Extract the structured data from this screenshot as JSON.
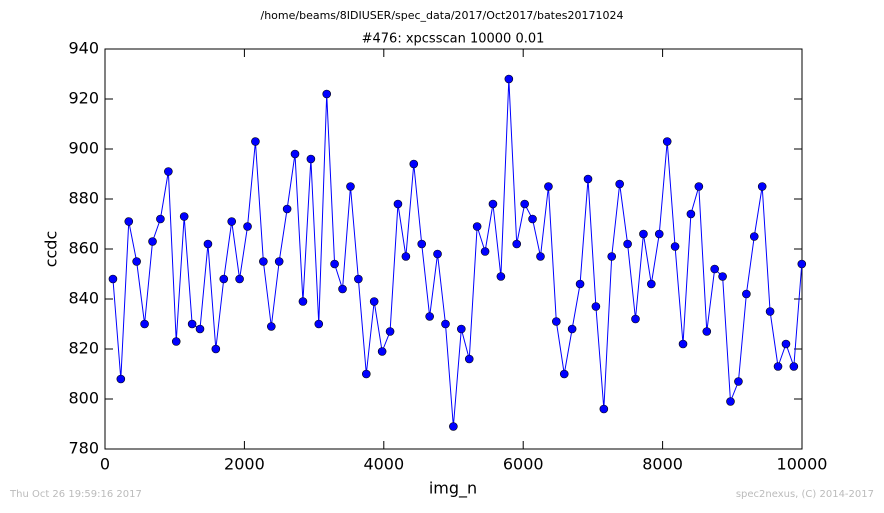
{
  "chart_data": {
    "type": "line",
    "suptitle": "/home/beams/8IDIUSER/spec_data/2017/Oct2017/bates20171024",
    "title": "#476: xpcsscan 10000 0.01",
    "x_label": "img_n",
    "y_label": "ccdc",
    "footer_left": "Thu Oct 26 19:59:16 2017",
    "footer_right": "spec2nexus, (C) 2014-2017",
    "xlim": [
      0,
      10000
    ],
    "xticks": [
      0,
      2000,
      4000,
      6000,
      8000,
      10000
    ],
    "ylim": [
      780,
      940
    ],
    "yticks": [
      780,
      800,
      820,
      840,
      860,
      880,
      900,
      920,
      940
    ],
    "grid": false,
    "series": [
      {
        "name": "ccdc",
        "color": "#0000ff",
        "x": [
          114,
          227,
          341,
          454,
          568,
          682,
          795,
          909,
          1022,
          1136,
          1250,
          1363,
          1477,
          1590,
          1704,
          1818,
          1931,
          2045,
          2158,
          2272,
          2386,
          2499,
          2613,
          2726,
          2840,
          2954,
          3067,
          3181,
          3294,
          3408,
          3522,
          3635,
          3749,
          3862,
          3976,
          4090,
          4203,
          4317,
          4430,
          4544,
          4658,
          4771,
          4885,
          4998,
          5112,
          5226,
          5339,
          5453,
          5566,
          5680,
          5794,
          5907,
          6021,
          6134,
          6248,
          6362,
          6475,
          6589,
          6702,
          6816,
          6930,
          7043,
          7157,
          7270,
          7384,
          7498,
          7611,
          7725,
          7838,
          7952,
          8066,
          8179,
          8293,
          8406,
          8520,
          8634,
          8747,
          8861,
          8974,
          9088,
          9202,
          9315,
          9429,
          9542,
          9656,
          9770,
          9883,
          9997
        ],
        "values": [
          848,
          808,
          871,
          855,
          830,
          863,
          872,
          891,
          823,
          873,
          830,
          828,
          862,
          820,
          848,
          871,
          848,
          869,
          903,
          855,
          829,
          855,
          876,
          898,
          839,
          896,
          830,
          922,
          854,
          844,
          885,
          848,
          810,
          839,
          819,
          827,
          878,
          857,
          894,
          862,
          833,
          858,
          830,
          789,
          828,
          816,
          869,
          859,
          878,
          849,
          928,
          862,
          878,
          872,
          857,
          885,
          831,
          810,
          828,
          846,
          888,
          837,
          796,
          857,
          886,
          862,
          832,
          866,
          846,
          866,
          903,
          861,
          822,
          874,
          885,
          827,
          852,
          849,
          799,
          807,
          842,
          865,
          885,
          835,
          813,
          822,
          813,
          854
        ]
      }
    ]
  }
}
